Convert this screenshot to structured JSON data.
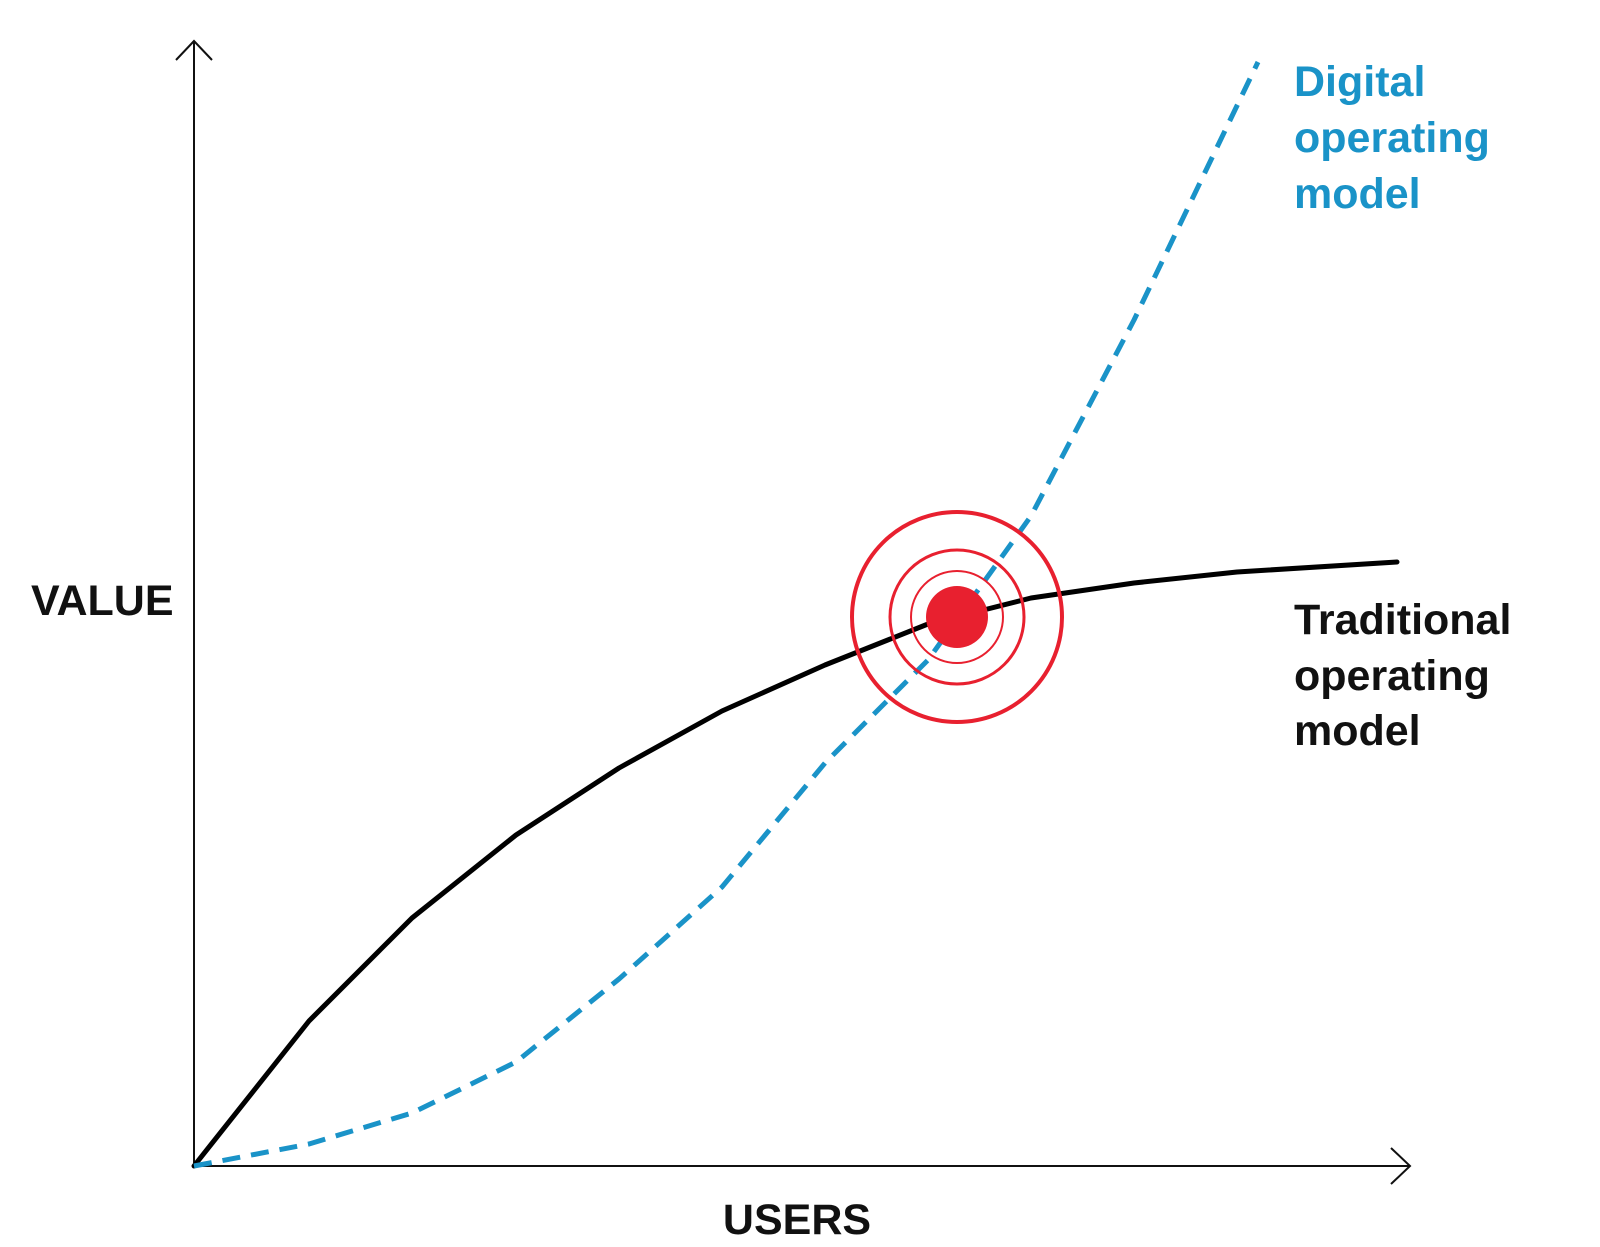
{
  "axes": {
    "y_label": "VALUE",
    "x_label": "USERS"
  },
  "curves": {
    "digital": {
      "label_lines": [
        "Digital",
        "operating",
        "model"
      ]
    },
    "traditional": {
      "label_lines": [
        "Traditional",
        "operating",
        "model"
      ]
    }
  }
}
